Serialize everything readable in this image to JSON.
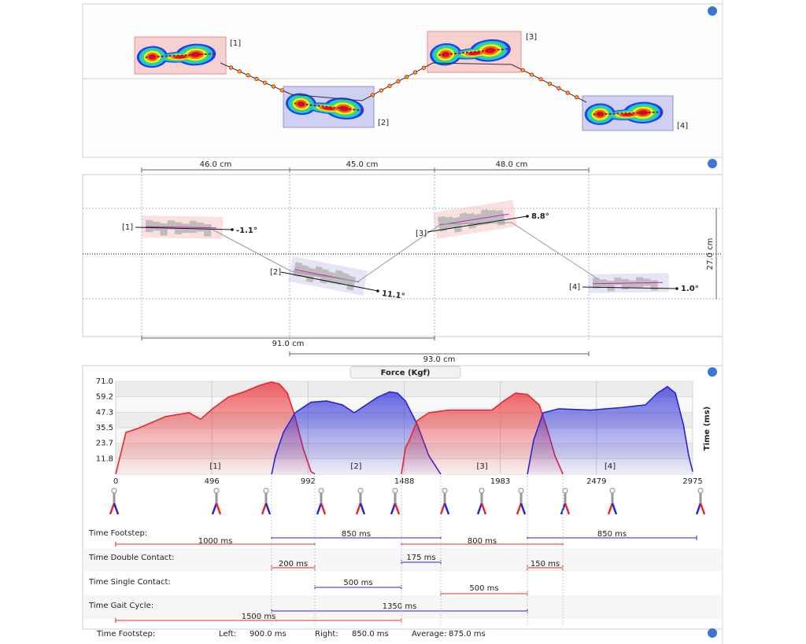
{
  "footprint_map": {
    "labels": [
      "[1]",
      "[2]",
      "[3]",
      "[4]"
    ]
  },
  "measurements": {
    "step_lengths": [
      "46.0 cm",
      "45.0 cm",
      "48.0 cm"
    ],
    "stride_lengths": [
      "91.0 cm",
      "93.0 cm"
    ],
    "width": "27.0 cm",
    "labels": [
      "[1]",
      "[2]",
      "[3]",
      "[4]"
    ],
    "angles": [
      "-1.1°",
      "11.1°",
      "8.8°",
      "1.0°"
    ]
  },
  "chart_data": {
    "type": "area",
    "title": "Force (Kgf)",
    "y_label": "Time (ms)",
    "xlim": [
      0,
      2975
    ],
    "xticks": [
      0,
      496,
      992,
      1488,
      1983,
      2479,
      2975
    ],
    "xtick_colors": [
      "#222",
      "#c02020",
      "#222",
      "#c02020",
      "#222",
      "#c02020",
      "#222"
    ],
    "ylim": [
      0,
      71
    ],
    "yticks": [
      {
        "value": 71,
        "label": "71.0"
      },
      59.2,
      47.3,
      35.5,
      23.7,
      11.8
    ],
    "ytick_colors": [
      "#222",
      "#c02020",
      "#222",
      "#222",
      "#222",
      "#c02020"
    ],
    "grid": true,
    "series": [
      {
        "name": "[1]",
        "color": "#e8262b",
        "x": [
          0,
          53,
          114,
          256,
          378,
          438,
          499,
          581,
          662,
          743,
          804,
          844,
          885,
          925,
          966,
          1007,
          1027
        ],
        "values": [
          0,
          32,
          35,
          44,
          47,
          42,
          50,
          59,
          63,
          68,
          70.5,
          69,
          62,
          44,
          20,
          2,
          0
        ]
      },
      {
        "name": "[2]",
        "color": "#2525d8",
        "x": [
          804,
          824,
          865,
          925,
          1007,
          1088,
          1169,
          1230,
          1291,
          1352,
          1413,
          1453,
          1494,
          1555,
          1615,
          1676
        ],
        "values": [
          0,
          14,
          32,
          47,
          55,
          56,
          53,
          47,
          53,
          59,
          63,
          62,
          56,
          38,
          14,
          0
        ]
      },
      {
        "name": "[3]",
        "color": "#e8262b",
        "x": [
          1473,
          1494,
          1514,
          1555,
          1615,
          1717,
          1839,
          1940,
          2001,
          2062,
          2123,
          2184,
          2224,
          2265,
          2306
        ],
        "values": [
          0,
          20,
          26,
          41,
          47,
          49,
          49,
          49,
          56,
          62,
          61,
          53,
          35,
          14,
          0
        ]
      },
      {
        "name": "[4]",
        "color": "#2525d8",
        "x": [
          2123,
          2155,
          2204,
          2285,
          2448,
          2610,
          2732,
          2793,
          2845,
          2886,
          2927,
          2955,
          2975
        ],
        "values": [
          0,
          26,
          47,
          50,
          49,
          51,
          53,
          62,
          67,
          62,
          38,
          14,
          2
        ]
      }
    ]
  },
  "timing": {
    "rows": [
      {
        "label": "Time Footstep:",
        "bars": [
          {
            "text": "1000 ms",
            "color": "#e8262b"
          },
          {
            "text": "850 ms",
            "color": "#2525d8"
          },
          {
            "text": "800 ms",
            "color": "#e8262b"
          },
          {
            "text": "850 ms",
            "color": "#2525d8"
          }
        ]
      },
      {
        "label": "Time Double Contact:",
        "bars": [
          {
            "text": "200 ms",
            "color": "#e8262b"
          },
          {
            "text": "175 ms",
            "color": "#2525d8"
          },
          {
            "text": "150 ms",
            "color": "#e8262b"
          }
        ]
      },
      {
        "label": "Time Single Contact:",
        "bars": [
          {
            "text": "500 ms",
            "color": "#2525d8"
          },
          {
            "text": "500 ms",
            "color": "#e8262b"
          }
        ]
      },
      {
        "label": "Time Gait Cycle:",
        "bars": [
          {
            "text": "1350 ms",
            "color": "#2525d8"
          },
          {
            "text": "1500 ms",
            "color": "#e8262b"
          }
        ]
      }
    ]
  },
  "status": {
    "label": "Time Footstep:",
    "left_label": "Left:",
    "left_value": "900.0 ms",
    "right_label": "Right:",
    "right_value": "850.0 ms",
    "average_label": "Average:",
    "average_value": "875.0 ms"
  }
}
